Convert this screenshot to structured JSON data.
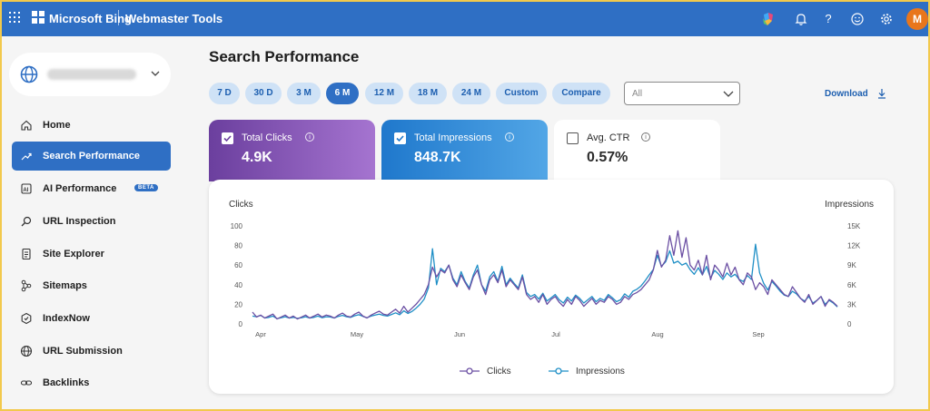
{
  "header": {
    "brand": "Microsoft Bing",
    "product": "Webmaster Tools",
    "avatar_initial": "M",
    "icons": [
      "waffle-icon",
      "copilot-icon",
      "bell-icon",
      "help-icon",
      "smiley-icon",
      "gear-icon"
    ]
  },
  "sidebar": {
    "items": [
      {
        "label": "Home",
        "icon": "home-icon"
      },
      {
        "label": "Search Performance",
        "icon": "trend-icon",
        "active": true
      },
      {
        "label": "AI Performance",
        "icon": "ai-icon",
        "badge": "BETA"
      },
      {
        "label": "URL Inspection",
        "icon": "search-icon"
      },
      {
        "label": "Site Explorer",
        "icon": "file-icon"
      },
      {
        "label": "Sitemaps",
        "icon": "sitemap-icon"
      },
      {
        "label": "IndexNow",
        "icon": "indexnow-icon"
      },
      {
        "label": "URL Submission",
        "icon": "globe-icon"
      },
      {
        "label": "Backlinks",
        "icon": "link-icon"
      }
    ]
  },
  "main": {
    "title": "Search Performance",
    "ranges": [
      "7 D",
      "30 D",
      "3 M",
      "6 M",
      "12 M",
      "18 M",
      "24 M",
      "Custom",
      "Compare"
    ],
    "active_range": "6 M",
    "filter_value": "All",
    "download_label": "Download",
    "metrics": {
      "clicks": {
        "label": "Total Clicks",
        "value": "4.9K",
        "checked": true
      },
      "impressions": {
        "label": "Total Impressions",
        "value": "848.7K",
        "checked": true
      },
      "ctr": {
        "label": "Avg. CTR",
        "value": "0.57%",
        "checked": false
      }
    }
  },
  "chart_data": {
    "type": "line",
    "ylabel_left": "Clicks",
    "ylabel_right": "Impressions",
    "yticks_left": [
      "100",
      "80",
      "60",
      "40",
      "20",
      "0"
    ],
    "yticks_right": [
      "15K",
      "12K",
      "9K",
      "6K",
      "3K",
      "0"
    ],
    "ylim_left": [
      0,
      100
    ],
    "ylim_right": [
      0,
      15000
    ],
    "xticks": [
      "Apr",
      "May",
      "Jun",
      "Jul",
      "Aug",
      "Sep"
    ],
    "colors": {
      "clicks": "#6b4fa3",
      "impressions": "#1f8fc6"
    },
    "series": [
      {
        "name": "Clicks",
        "axis": "left",
        "values": [
          12,
          7,
          9,
          6,
          8,
          10,
          5,
          7,
          9,
          6,
          8,
          5,
          7,
          9,
          6,
          8,
          10,
          7,
          9,
          8,
          6,
          9,
          11,
          8,
          7,
          10,
          12,
          8,
          6,
          9,
          11,
          13,
          10,
          9,
          12,
          15,
          11,
          18,
          12,
          16,
          20,
          25,
          30,
          40,
          58,
          48,
          55,
          52,
          60,
          45,
          38,
          50,
          42,
          35,
          48,
          55,
          40,
          30,
          45,
          50,
          42,
          55,
          38,
          45,
          40,
          35,
          48,
          30,
          25,
          28,
          22,
          30,
          20,
          25,
          28,
          22,
          18,
          25,
          20,
          28,
          24,
          18,
          22,
          26,
          20,
          24,
          22,
          28,
          25,
          20,
          22,
          28,
          25,
          30,
          32,
          35,
          40,
          45,
          55,
          75,
          58,
          65,
          90,
          70,
          95,
          68,
          88,
          60,
          55,
          65,
          50,
          70,
          45,
          60,
          55,
          48,
          62,
          50,
          58,
          45,
          40,
          52,
          48,
          35,
          42,
          38,
          30,
          45,
          40,
          35,
          30,
          28,
          38,
          32,
          26,
          22,
          30,
          20,
          24,
          28,
          18,
          25,
          22,
          18
        ]
      },
      {
        "name": "Impressions",
        "axis": "right",
        "values": [
          1200,
          1100,
          1300,
          900,
          1000,
          1200,
          800,
          950,
          1100,
          900,
          1000,
          850,
          950,
          1100,
          900,
          1000,
          1200,
          950,
          1100,
          1050,
          900,
          1150,
          1300,
          1100,
          1000,
          1250,
          1400,
          1150,
          950,
          1200,
          1350,
          1500,
          1300,
          1200,
          1450,
          1700,
          1400,
          2000,
          1600,
          1900,
          2400,
          3000,
          3800,
          5500,
          11500,
          6000,
          8500,
          8000,
          9000,
          7000,
          6000,
          8000,
          6500,
          5500,
          7500,
          9000,
          6000,
          5000,
          7200,
          8000,
          6500,
          8800,
          6000,
          7000,
          6200,
          5500,
          7500,
          4800,
          4200,
          4500,
          3800,
          4700,
          3500,
          4000,
          4500,
          3700,
          3200,
          4100,
          3500,
          4400,
          3900,
          3200,
          3700,
          4200,
          3400,
          3900,
          3600,
          4500,
          4000,
          3400,
          3700,
          4600,
          4100,
          5000,
          5300,
          5800,
          6600,
          7500,
          8300,
          10500,
          8800,
          9500,
          11200,
          9300,
          9600,
          9000,
          9300,
          8300,
          7600,
          8600,
          7500,
          8800,
          7000,
          8200,
          7600,
          6800,
          7800,
          7200,
          7600,
          6800,
          6500,
          7400,
          6800,
          12200,
          7800,
          6200,
          5200,
          6500,
          5800,
          5000,
          4400,
          4200,
          5000,
          4600,
          3900,
          3500,
          4200,
          3200,
          3600,
          4200,
          3000,
          3600,
          3200,
          2600
        ]
      }
    ]
  }
}
